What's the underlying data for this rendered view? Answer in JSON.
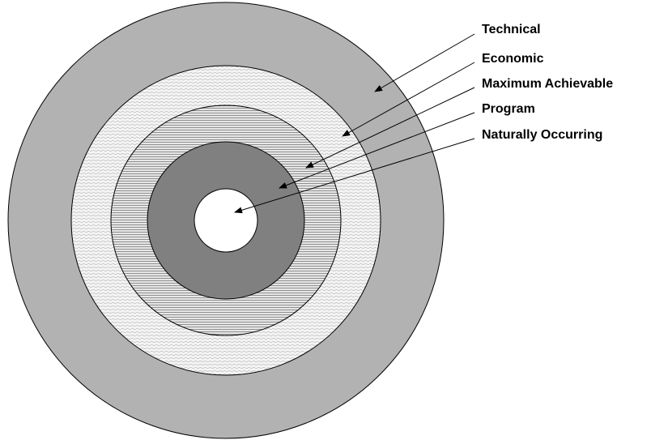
{
  "nodes": [
    {
      "label": "Technical"
    },
    {
      "label": "Economic"
    },
    {
      "label": "Maximum Achievable"
    },
    {
      "label": "Program"
    },
    {
      "label": "Naturally Occurring"
    }
  ]
}
